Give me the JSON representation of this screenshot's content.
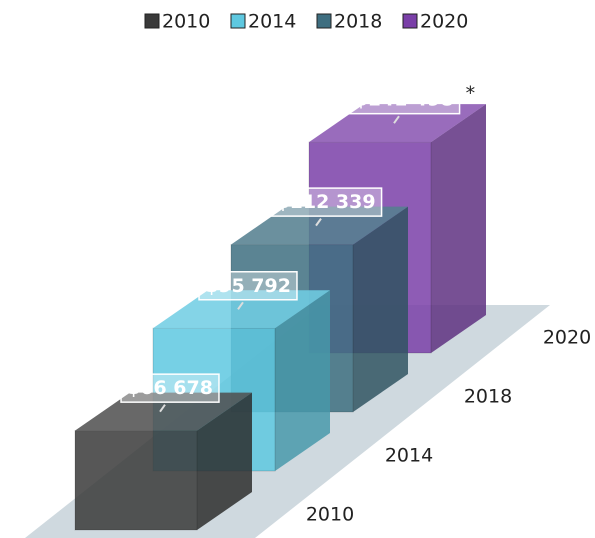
{
  "chart_data": {
    "type": "bar3d",
    "categories": [
      "2010",
      "2014",
      "2018",
      "2020"
    ],
    "values": [
      66678,
      95792,
      112339,
      141498
    ],
    "value_labels": [
      "$66 678",
      "$95 792",
      "$112 339",
      "$141 498"
    ],
    "colors": [
      "#3a3a3a",
      "#5ec8e0",
      "#3e6e80",
      "#7a3fa8"
    ],
    "annotation": "*"
  }
}
